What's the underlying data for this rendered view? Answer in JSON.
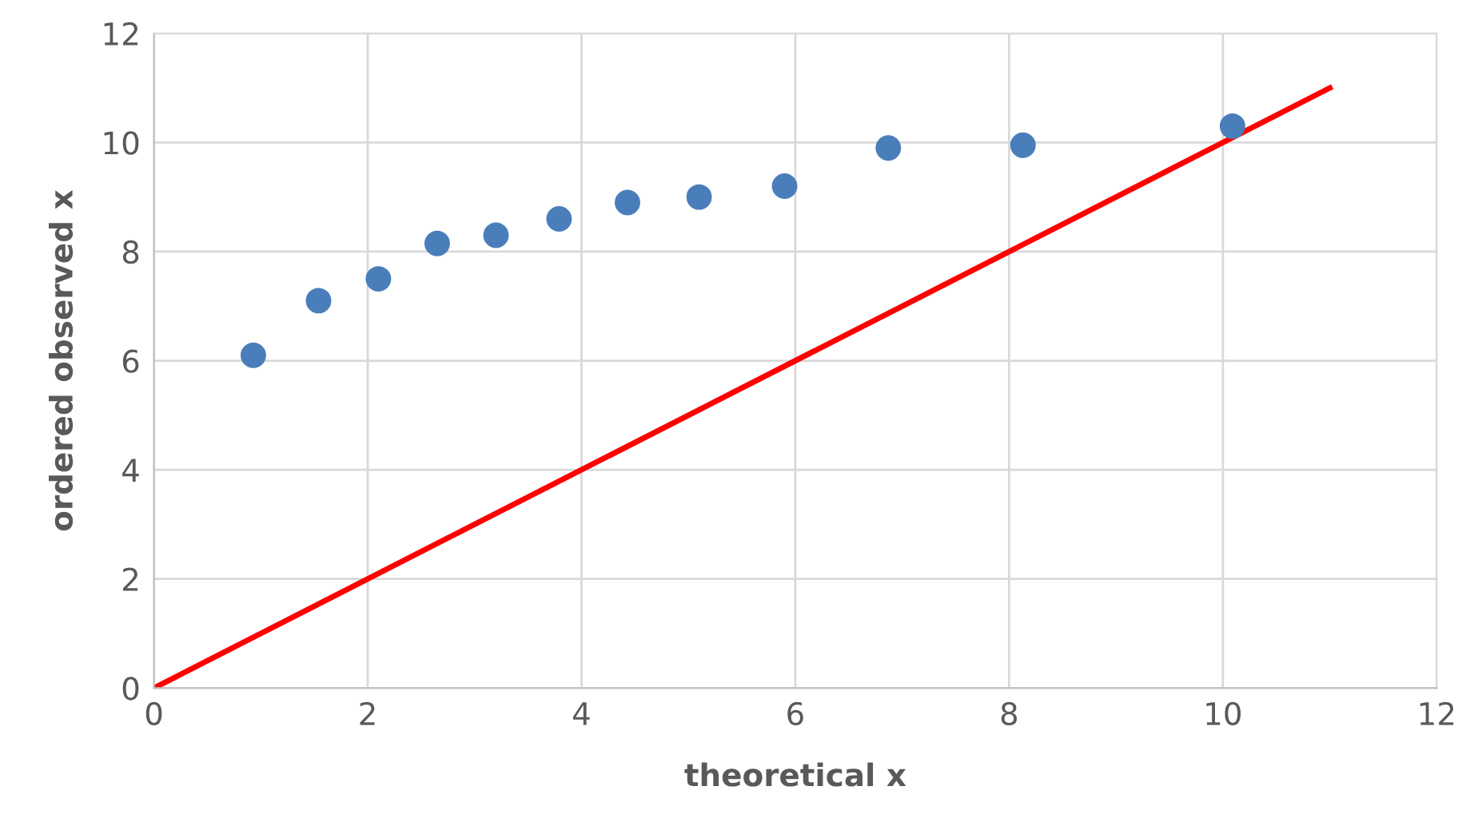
{
  "chart_data": {
    "type": "scatter",
    "xlabel": "theoretical x",
    "ylabel": "ordered observed x",
    "series": [
      {
        "marker": "circle",
        "color": "#4a7ebb",
        "x": [
          0.93,
          1.54,
          2.1,
          2.65,
          3.2,
          3.79,
          4.43,
          5.1,
          5.9,
          6.87,
          8.13,
          10.09
        ],
        "values": [
          6.1,
          7.1,
          7.5,
          8.15,
          8.3,
          8.6,
          8.9,
          9.0,
          9.2,
          9.9,
          9.95,
          10.3
        ]
      },
      {
        "type": "line",
        "color": "#ff0000",
        "x": [
          0,
          11
        ],
        "values": [
          0,
          11
        ]
      }
    ],
    "xlim": [
      0,
      12
    ],
    "ylim": [
      0,
      12
    ],
    "xticks": [
      0,
      2,
      4,
      6,
      8,
      10,
      12
    ],
    "yticks": [
      0,
      2,
      4,
      6,
      8,
      10,
      12
    ],
    "grid": true,
    "legend": false
  }
}
